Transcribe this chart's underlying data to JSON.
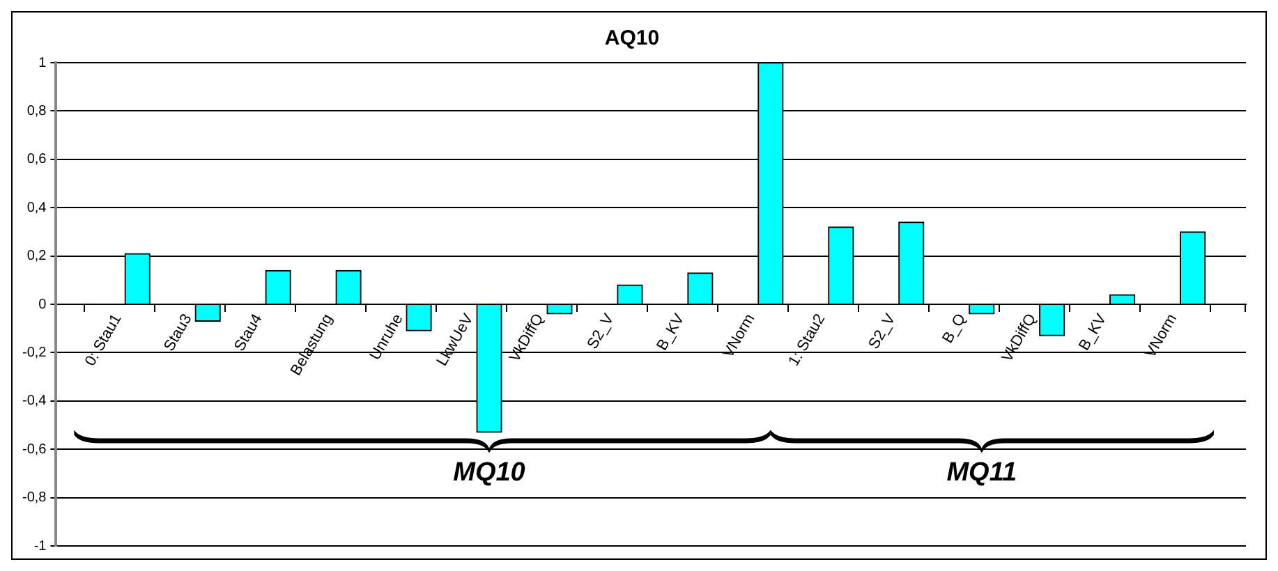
{
  "chart_data": {
    "type": "bar",
    "title": "AQ10",
    "categories": [
      "0: Stau1",
      "Stau3",
      "Stau4",
      "Belastung",
      "Unruhe",
      "LkwUeV",
      "VkDiffQ",
      "S2_V",
      "B_KV",
      "VNorm",
      "1: Stau2",
      "S2_V",
      "B_Q",
      "VkDiffQ",
      "B_KV",
      "VNorm"
    ],
    "values": [
      0.21,
      -0.07,
      0.14,
      0.14,
      -0.11,
      -0.53,
      -0.04,
      0.08,
      0.13,
      1.0,
      0.32,
      0.34,
      -0.04,
      -0.13,
      0.04,
      0.3
    ],
    "color": "#00ffff",
    "ylim": [
      -1,
      1
    ],
    "yticks": [
      {
        "value": -1,
        "label": "-1"
      },
      {
        "value": -0.8,
        "label": "-0,8"
      },
      {
        "value": -0.6,
        "label": "-0,6"
      },
      {
        "value": -0.4,
        "label": "-0,4"
      },
      {
        "value": -0.2,
        "label": "-0,2"
      },
      0,
      {
        "value": 0.2,
        "label": "0,2"
      },
      {
        "value": 0.4,
        "label": "0,4"
      },
      {
        "value": 0.6,
        "label": "0,6"
      },
      {
        "value": 0.8,
        "label": "0,8"
      },
      1
    ],
    "grid": "y",
    "legend": false,
    "annotations": [
      "MQ10",
      "MQ11"
    ]
  }
}
